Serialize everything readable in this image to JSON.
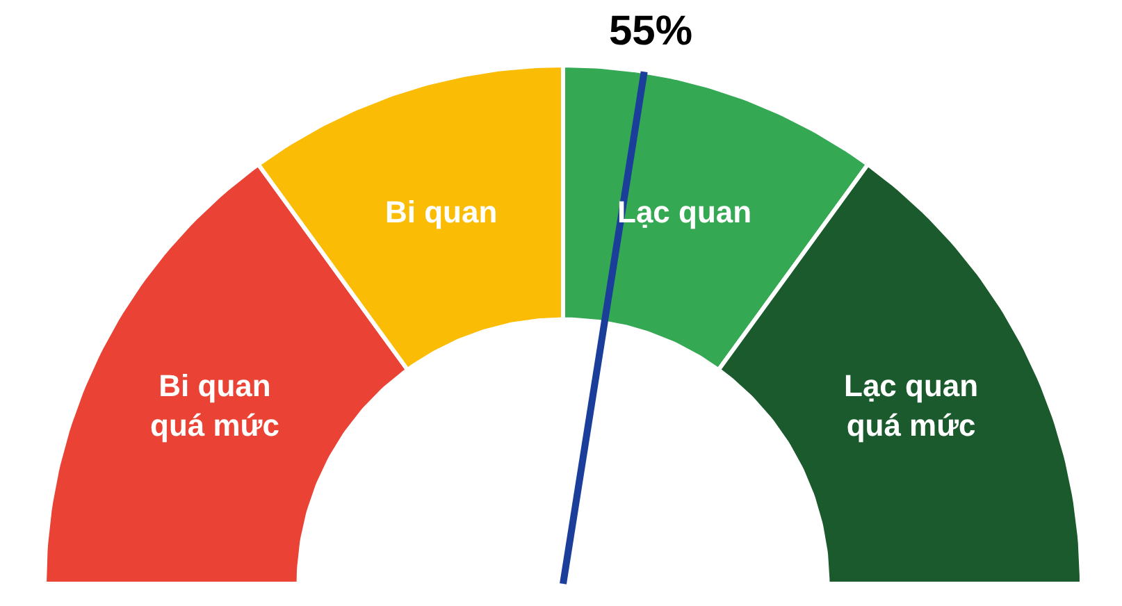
{
  "chart_data": {
    "type": "donut",
    "categories": [
      "Bi quan\nquá mức",
      "Bi quan",
      "Lạc quan",
      "Lạc quan\nquá mức"
    ],
    "values": [
      30,
      20,
      20,
      30
    ],
    "colors": [
      "#ea4335",
      "#fbbc05",
      "#34a853",
      "#1b5a2c"
    ],
    "needle": "Lạc quan",
    "annotations": [
      "55%"
    ]
  }
}
